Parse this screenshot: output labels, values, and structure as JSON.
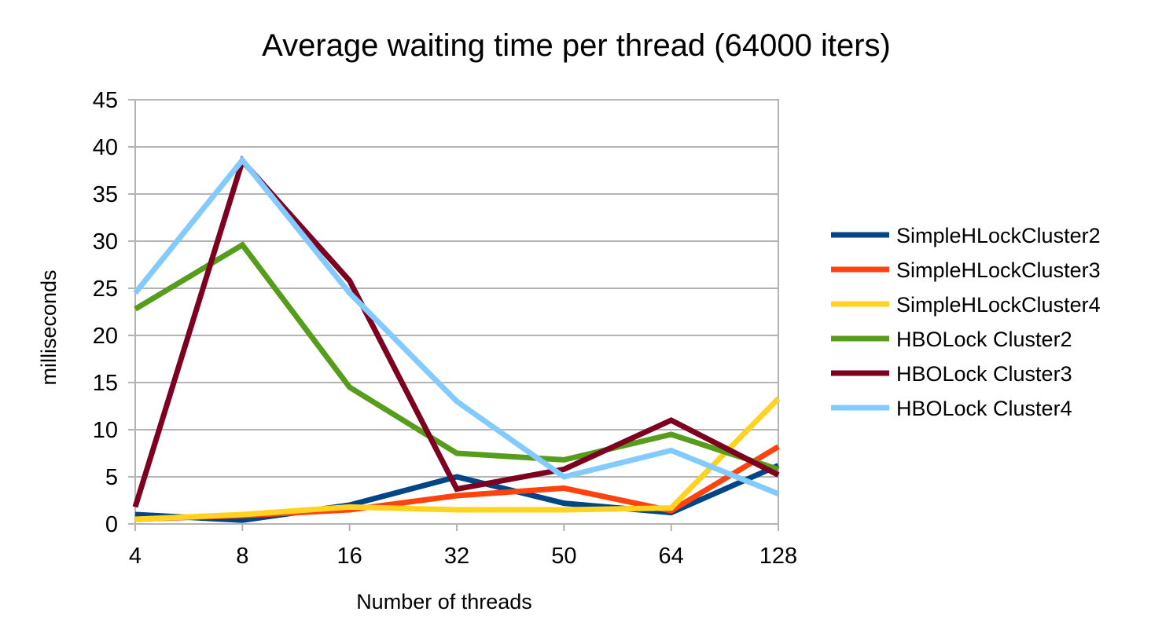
{
  "chart_data": {
    "type": "line",
    "title": "Average waiting time per thread (64000 iters)",
    "xlabel": "Number of threads",
    "ylabel": "milliseconds",
    "categories": [
      "4",
      "8",
      "16",
      "32",
      "50",
      "64",
      "128"
    ],
    "ylim": [
      0,
      45
    ],
    "yticks": [
      "0",
      "5",
      "10",
      "15",
      "20",
      "25",
      "30",
      "35",
      "40",
      "45"
    ],
    "grid": true,
    "legend_position": "right",
    "series": [
      {
        "name": "SimpleHLockCluster2",
        "color": "#004586",
        "values": [
          1.0,
          0.4,
          2.0,
          5.0,
          2.2,
          1.2,
          6.2
        ]
      },
      {
        "name": "SimpleHLockCluster3",
        "color": "#ff420e",
        "values": [
          0.5,
          0.9,
          1.5,
          3.0,
          3.8,
          1.4,
          8.2
        ]
      },
      {
        "name": "SimpleHLockCluster4",
        "color": "#ffd320",
        "values": [
          0.5,
          1.0,
          1.8,
          1.5,
          1.5,
          1.7,
          13.3
        ]
      },
      {
        "name": "HBOLock Cluster2",
        "color": "#579d1c",
        "values": [
          22.8,
          29.6,
          14.5,
          7.5,
          6.8,
          9.5,
          5.8
        ]
      },
      {
        "name": "HBOLock Cluster3",
        "color": "#7e0021",
        "values": [
          1.8,
          38.5,
          25.8,
          3.7,
          5.8,
          11.0,
          5.2
        ]
      },
      {
        "name": "HBOLock Cluster4",
        "color": "#83caff",
        "values": [
          24.5,
          38.6,
          24.5,
          13.0,
          5.0,
          7.8,
          3.2
        ]
      }
    ]
  }
}
